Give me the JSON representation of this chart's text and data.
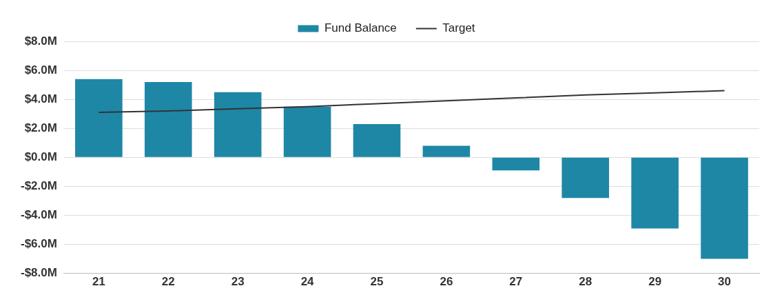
{
  "chart_data": {
    "type": "bar",
    "categories": [
      "21",
      "22",
      "23",
      "24",
      "25",
      "26",
      "27",
      "28",
      "29",
      "30"
    ],
    "series": [
      {
        "name": "Fund Balance",
        "color": "#1f87a6",
        "values": [
          5.4,
          5.2,
          4.5,
          3.5,
          2.3,
          0.8,
          -0.9,
          -2.8,
          -4.9,
          -7.0
        ]
      },
      {
        "name": "Target",
        "type": "line",
        "color": "#333333",
        "values": [
          3.1,
          3.2,
          3.35,
          3.5,
          3.7,
          3.9,
          4.1,
          4.3,
          4.45,
          4.6
        ]
      }
    ],
    "ylim": [
      -8,
      8
    ],
    "yticks": [
      {
        "value": -8,
        "label": "-$8.0M"
      },
      {
        "value": -6,
        "label": "-$6.0M"
      },
      {
        "value": -4,
        "label": "-$4.0M"
      },
      {
        "value": -2,
        "label": "-$2.0M"
      },
      {
        "value": 0,
        "label": "$0.0M"
      },
      {
        "value": 2,
        "label": "$2.0M"
      },
      {
        "value": 4,
        "label": "$4.0M"
      },
      {
        "value": 6,
        "label": "$6.0M"
      },
      {
        "value": 8,
        "label": "$8.0M"
      }
    ],
    "grid": "y",
    "legend": "top",
    "marker": "none"
  }
}
